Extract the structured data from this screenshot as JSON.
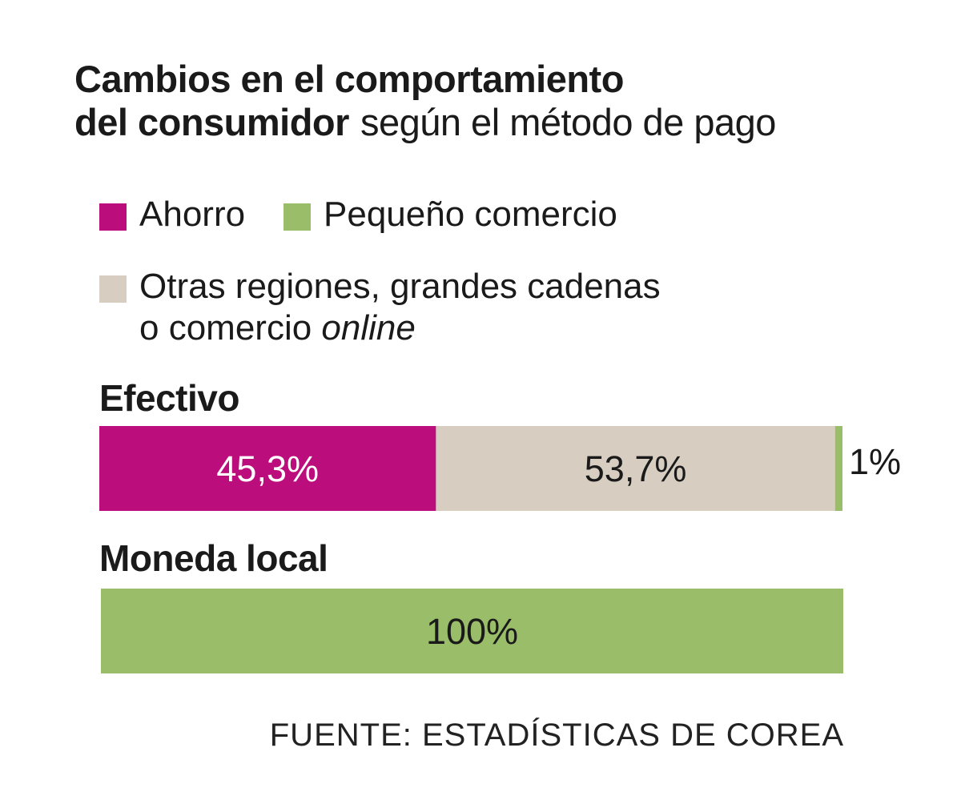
{
  "title": {
    "line1": "Cambios en el comportamiento",
    "line2": "del consumidor",
    "subtitle": "según el método de pago"
  },
  "legend": [
    {
      "label": "Ahorro",
      "color": "#bc0d7c"
    },
    {
      "label": "Pequeño comercio",
      "color": "#99bd68"
    },
    {
      "label_part1": "Otras regiones, grandes cadenas",
      "label_part2": "o comercio",
      "label_italic": "online",
      "color": "#d8cdc1"
    }
  ],
  "chart_data": {
    "type": "bar",
    "orientation": "horizontal",
    "stacked": true,
    "normalized": true,
    "unit": "%",
    "categories": [
      "Efectivo",
      "Moneda local"
    ],
    "series": [
      {
        "name": "Ahorro",
        "color": "#bc0d7c",
        "values": [
          45.3,
          0
        ],
        "labels": [
          "45,3%",
          ""
        ]
      },
      {
        "name": "Otras regiones, grandes cadenas o comercio online",
        "color": "#d8cdc1",
        "values": [
          53.7,
          0
        ],
        "labels": [
          "53,7%",
          ""
        ]
      },
      {
        "name": "Pequeño comercio",
        "color": "#99bd68",
        "values": [
          1,
          100
        ],
        "labels": [
          "1%",
          "100%"
        ]
      }
    ]
  },
  "source": "FUENTE: ESTADÍSTICAS DE COREA"
}
